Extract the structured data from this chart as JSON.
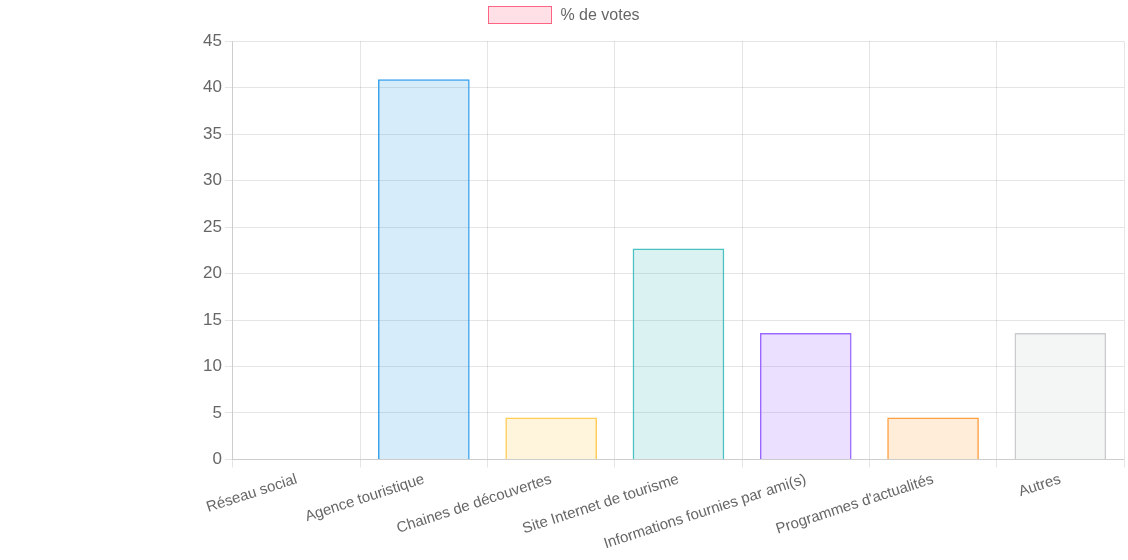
{
  "chart_data": {
    "type": "bar",
    "categories": [
      "Réseau social",
      "Agence touristique",
      "Chaines de découvertes",
      "Site Internet de tourisme",
      "Informations fournies par ami(s)",
      "Programmes d'actualités",
      "Autres"
    ],
    "series": [
      {
        "name": "% de votes",
        "color": "#ffe0e6",
        "colors": [
          "#ff6384",
          "#36a2eb",
          "#ffcd56",
          "#4bc0c0",
          "#9966ff",
          "#ff9f40",
          "#c9cbcf"
        ],
        "values": [
          0,
          40.9,
          4.5,
          22.7,
          13.6,
          4.5,
          13.6
        ]
      }
    ],
    "ylim": [
      0,
      45
    ],
    "yticks": [
      0,
      5,
      10,
      15,
      20,
      25,
      30,
      35,
      40,
      45
    ],
    "grid": true,
    "legend": "top"
  }
}
